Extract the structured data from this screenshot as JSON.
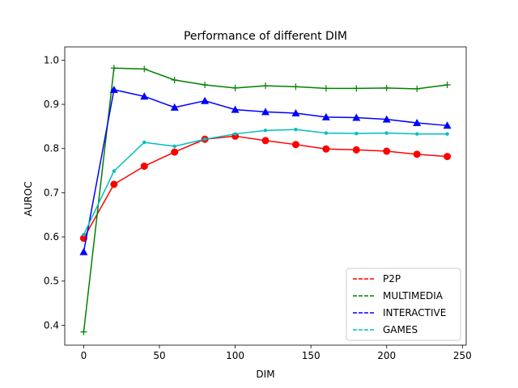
{
  "chart_data": {
    "type": "line",
    "title": "Performance of different DIM",
    "xlabel": "DIM",
    "ylabel": "AUROC",
    "xlim": [
      -12.5,
      252.5
    ],
    "ylim": [
      0.355,
      1.03
    ],
    "xticks": [
      0,
      50,
      100,
      150,
      200,
      250
    ],
    "xtick_labels": [
      "0",
      "50",
      "100",
      "150",
      "200",
      "250"
    ],
    "yticks": [
      0.4,
      0.5,
      0.6,
      0.7,
      0.8,
      0.9,
      1.0
    ],
    "ytick_labels": [
      "0.4",
      "0.5",
      "0.6",
      "0.7",
      "0.8",
      "0.9",
      "1.0"
    ],
    "grid": false,
    "legend_position": "lower-right",
    "x": [
      0,
      20,
      40,
      60,
      80,
      100,
      120,
      140,
      160,
      180,
      200,
      220,
      240
    ],
    "series": [
      {
        "name": "P2P",
        "color": "#ff0000",
        "marker": "circle",
        "values": [
          0.597,
          0.719,
          0.76,
          0.792,
          0.821,
          0.828,
          0.818,
          0.809,
          0.799,
          0.797,
          0.794,
          0.787,
          0.782
        ]
      },
      {
        "name": "MULTIMEDIA",
        "color": "#008000",
        "marker": "plus",
        "values": [
          0.385,
          0.982,
          0.98,
          0.955,
          0.944,
          0.937,
          0.942,
          0.94,
          0.936,
          0.936,
          0.937,
          0.935,
          0.944
        ]
      },
      {
        "name": "INTERACTIVE",
        "color": "#0000ff",
        "marker": "triangle",
        "values": [
          0.566,
          0.933,
          0.918,
          0.893,
          0.908,
          0.888,
          0.883,
          0.88,
          0.871,
          0.87,
          0.866,
          0.858,
          0.852
        ]
      },
      {
        "name": "GAMES",
        "color": "#00bfbf",
        "marker": "dot",
        "values": [
          0.605,
          0.749,
          0.814,
          0.805,
          0.821,
          0.833,
          0.841,
          0.843,
          0.835,
          0.834,
          0.835,
          0.833,
          0.833
        ]
      }
    ]
  }
}
